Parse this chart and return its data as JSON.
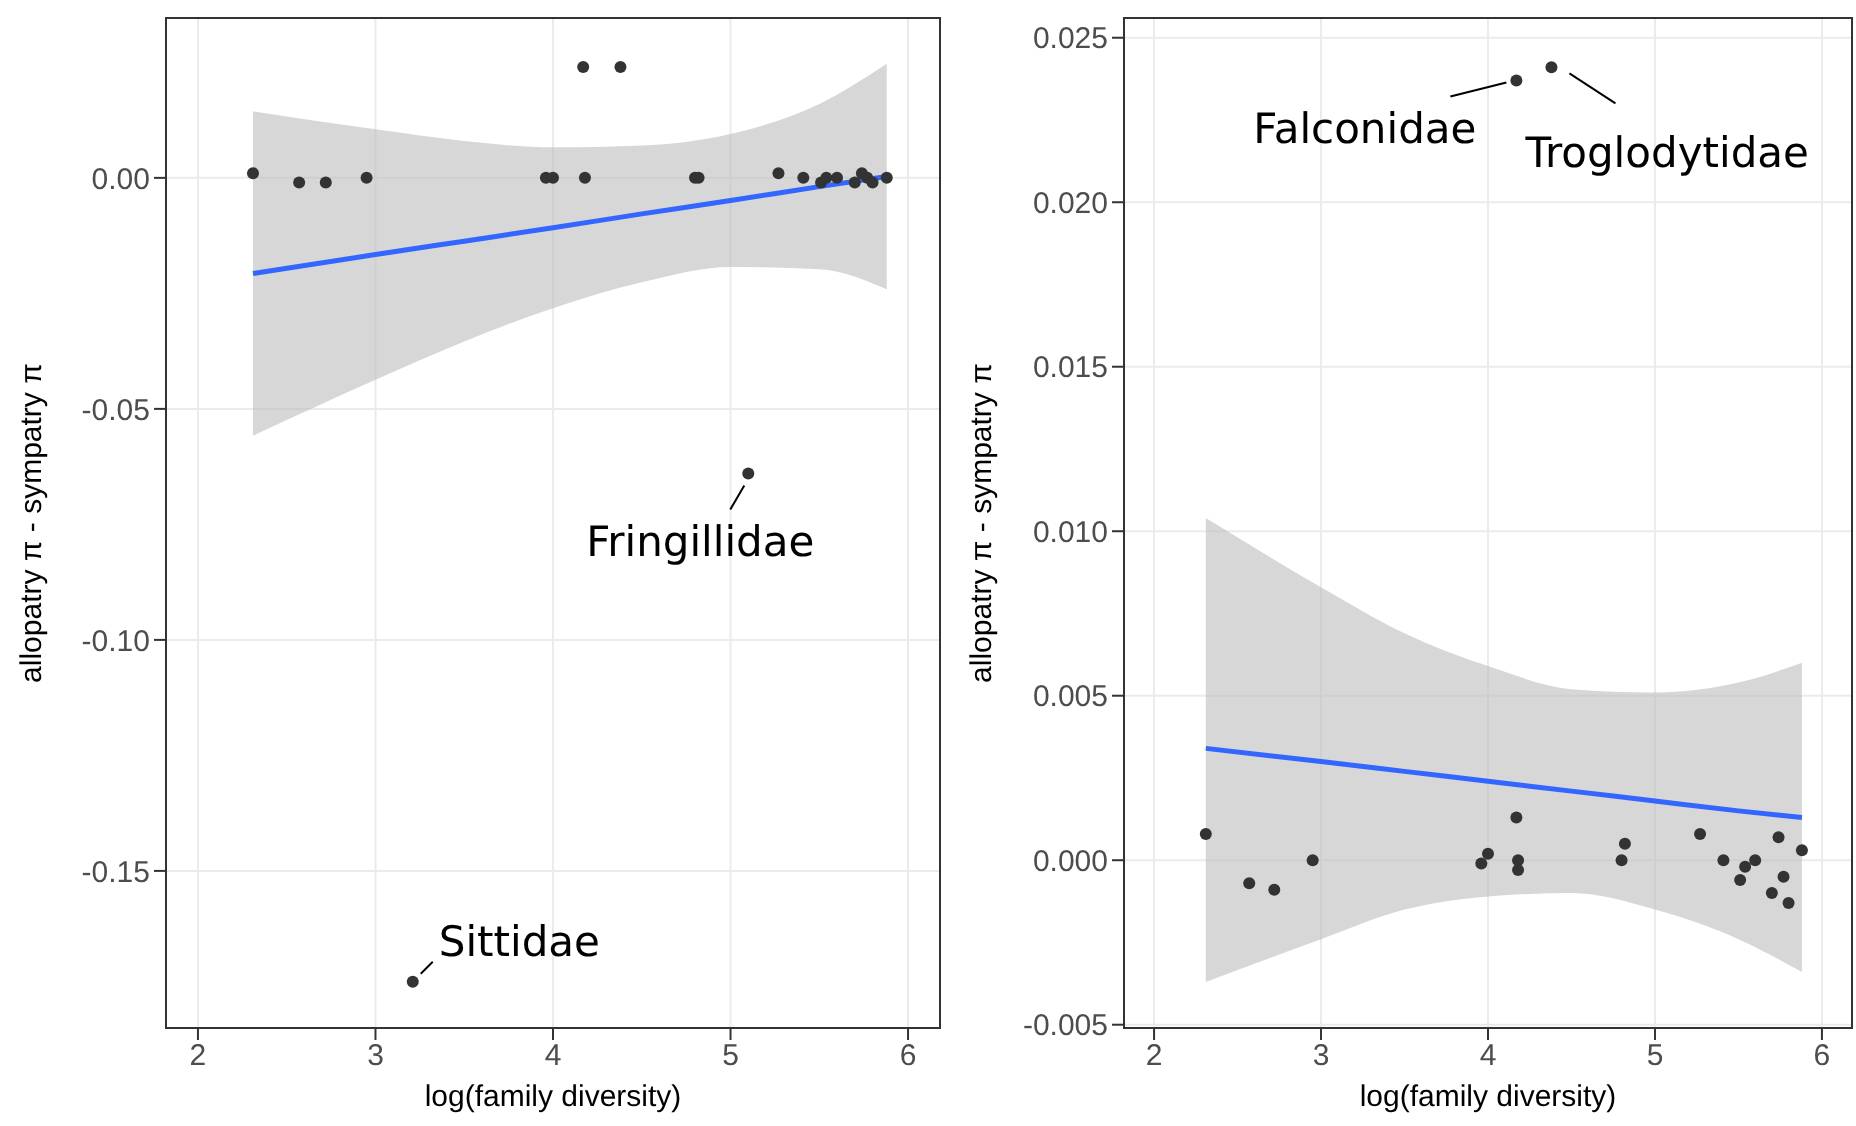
{
  "chart_data": [
    {
      "type": "scatter",
      "xlabel": "log(family diversity)",
      "ylabel": "allopatry π - sympatry π",
      "xlim": [
        1.82,
        6.18
      ],
      "xticks": [
        2,
        3,
        4,
        5,
        6
      ],
      "ylim": [
        -0.184,
        0.0346
      ],
      "yticks": [
        {
          "value": 0,
          "label": "0.00"
        },
        {
          "value": -0.05,
          "label": "-0.05"
        },
        {
          "value": -0.1,
          "label": "-0.10"
        },
        {
          "value": -0.15,
          "label": "-0.15"
        }
      ],
      "grid": true,
      "legend": false,
      "series": [
        {
          "marker": "circle",
          "color": "#333333",
          "x": [
            2.31,
            2.57,
            2.72,
            2.95,
            3.96,
            4.0,
            4.17,
            4.18,
            4.8,
            4.82,
            5.27,
            5.41,
            5.51,
            5.54,
            5.6,
            5.7,
            5.74,
            5.77,
            5.8,
            5.88,
            4.17,
            4.38,
            3.21,
            5.1
          ],
          "values": [
            0.001,
            -0.001,
            -0.001,
            0.0,
            0.0,
            0.0,
            null,
            0.0,
            0.0,
            0.0,
            0.001,
            0.0,
            -0.001,
            0.0,
            0.0,
            -0.001,
            0.001,
            0.0,
            -0.001,
            0.0,
            0.024,
            0.024,
            -0.174,
            -0.064
          ]
        },
        {
          "type": "line",
          "marker": "none",
          "color": "#3366ff",
          "x": [
            2.31,
            3,
            3.5,
            4,
            4.5,
            5,
            5.5,
            5.88
          ],
          "values": [
            -0.0207,
            -0.0166,
            -0.0137,
            -0.0108,
            -0.0078,
            -0.0049,
            -0.0019,
            0.0003
          ],
          "lower": [
            -0.0558,
            -0.0437,
            -0.0354,
            -0.0282,
            -0.0226,
            -0.0193,
            -0.0198,
            -0.0241
          ],
          "upper": [
            0.0144,
            0.0105,
            0.008,
            0.0066,
            0.007,
            0.0095,
            0.016,
            0.0247
          ]
        }
      ],
      "annotations": [
        {
          "text": "Fringillidae",
          "x": 5.1,
          "y": -0.064
        },
        {
          "text": "Sittidae",
          "x": 3.21,
          "y": -0.174
        }
      ]
    },
    {
      "type": "scatter",
      "xlabel": "log(family diversity)",
      "ylabel": "allopatry π - sympatry π",
      "xlim": [
        1.82,
        6.18
      ],
      "xticks": [
        2,
        3,
        4,
        5,
        6
      ],
      "ylim": [
        -0.0051,
        0.0256
      ],
      "yticks": [
        {
          "value": -0.005,
          "label": "-0.005"
        },
        {
          "value": 0,
          "label": "0.000"
        },
        {
          "value": 0.005,
          "label": "0.005"
        },
        {
          "value": 0.01,
          "label": "0.010"
        },
        {
          "value": 0.015,
          "label": "0.015"
        },
        {
          "value": 0.02,
          "label": "0.020"
        },
        {
          "value": 0.025,
          "label": "0.025"
        }
      ],
      "grid": true,
      "legend": false,
      "series": [
        {
          "marker": "circle",
          "color": "#333333",
          "x": [
            2.31,
            2.57,
            2.72,
            2.95,
            3.96,
            4.0,
            4.17,
            4.18,
            4.18,
            4.8,
            4.82,
            5.27,
            5.41,
            5.51,
            5.54,
            5.6,
            5.7,
            5.74,
            5.77,
            5.8,
            5.88,
            4.17,
            4.38
          ],
          "values": [
            0.0008,
            -0.0007,
            -0.0009,
            0.0,
            -0.0001,
            0.0002,
            0.0013,
            0.0,
            -0.0003,
            0.0,
            0.0005,
            0.0008,
            0.0,
            -0.0006,
            -0.0002,
            0.0,
            -0.001,
            0.0007,
            -0.0005,
            -0.0013,
            0.0003,
            0.0237,
            0.0241
          ]
        },
        {
          "type": "line",
          "marker": "none",
          "color": "#3366ff",
          "x": [
            2.31,
            3,
            3.5,
            4,
            4.5,
            5,
            5.5,
            5.88
          ],
          "values": [
            0.0034,
            0.003,
            0.0027,
            0.0024,
            0.0021,
            0.0018,
            0.0015,
            0.0013
          ],
          "lower": [
            -0.0037,
            -0.0024,
            -0.0015,
            -0.0011,
            -0.001,
            -0.0015,
            -0.0024,
            -0.0034
          ],
          "upper": [
            0.0104,
            0.0083,
            0.0069,
            0.0059,
            0.0052,
            0.0051,
            0.0054,
            0.006
          ]
        }
      ],
      "annotations": [
        {
          "text": "Falconidae",
          "x": 4.17,
          "y": 0.0237
        },
        {
          "text": "Troglodytidae",
          "x": 4.38,
          "y": 0.0241
        }
      ]
    }
  ]
}
